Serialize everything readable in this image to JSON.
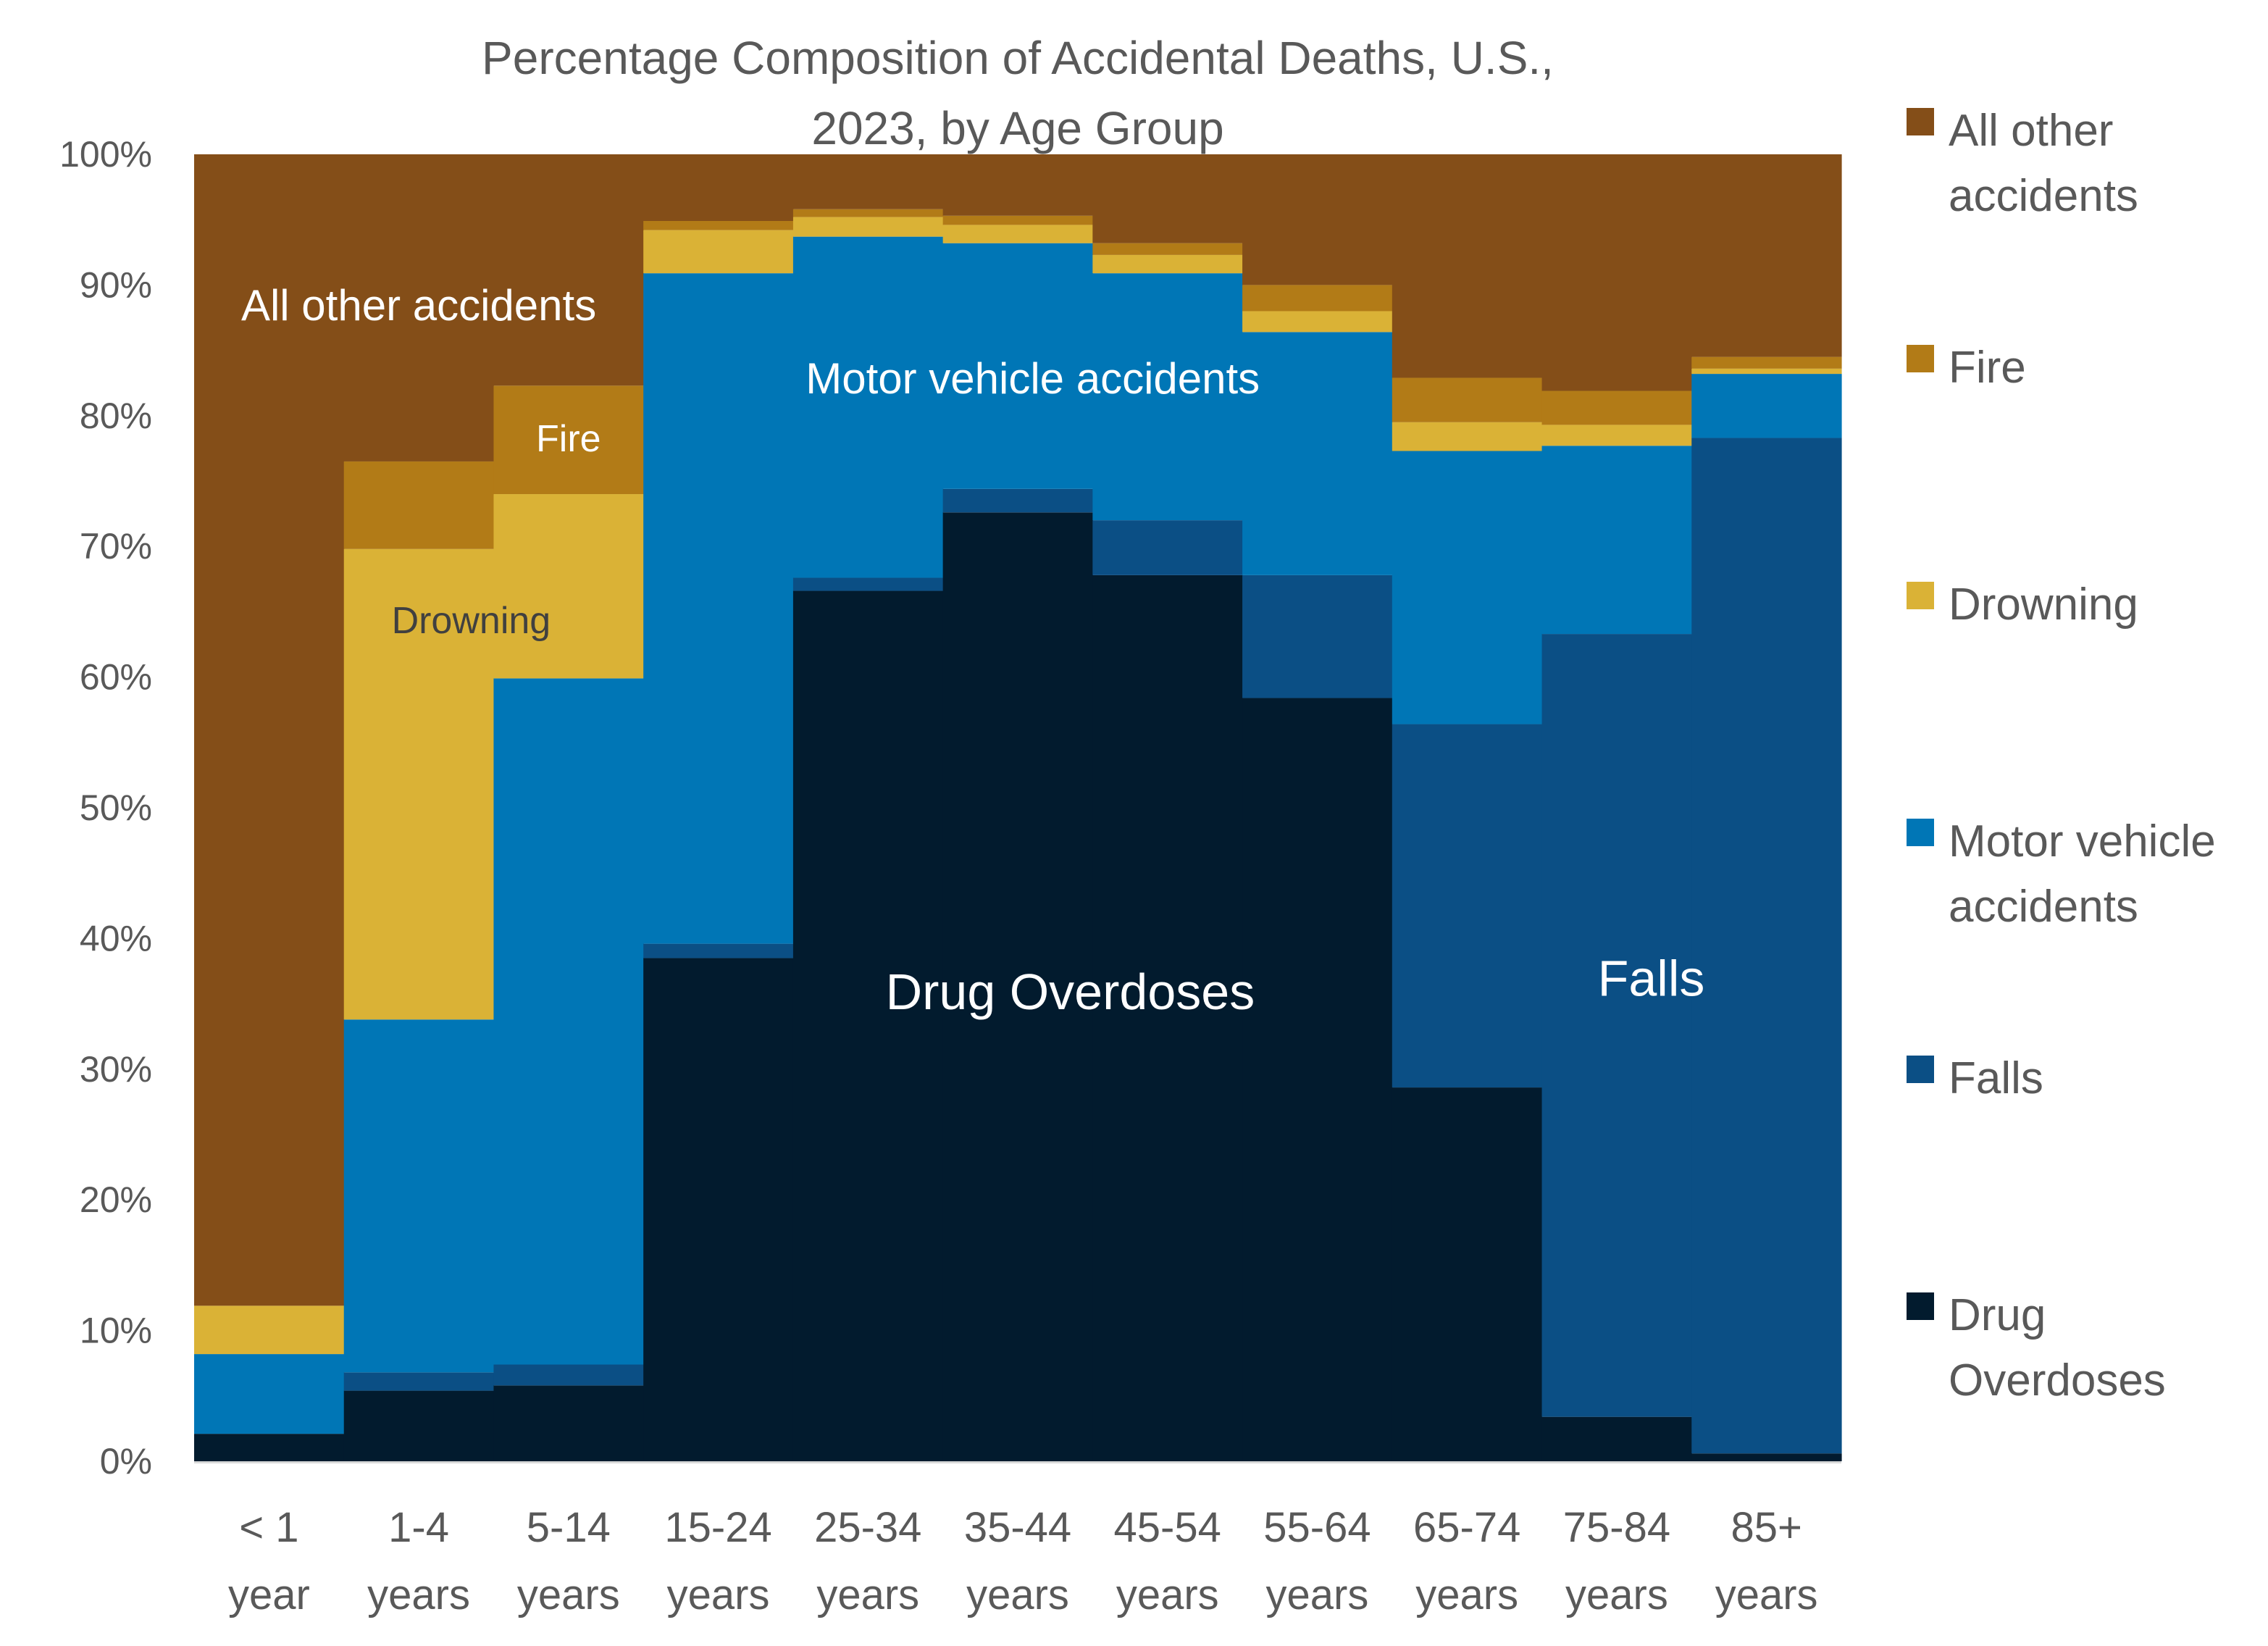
{
  "chart_data": {
    "type": "bar",
    "stacking": "percent",
    "title": "Percentage Composition of Accidental Deaths, U.S., 2023, by Age Group",
    "title_lines": [
      "Percentage Composition of Accidental Deaths, U.S.,",
      "2023, by Age Group"
    ],
    "xlabel": "",
    "ylabel": "",
    "ylim": [
      0,
      100
    ],
    "y_ticks": [
      "0%",
      "10%",
      "20%",
      "30%",
      "40%",
      "50%",
      "60%",
      "70%",
      "80%",
      "90%",
      "100%"
    ],
    "categories": [
      "< 1 year",
      "1-4 years",
      "5-14 years",
      "15-24 years",
      "25-34 years",
      "35-44 years",
      "45-54 years",
      "55-64 years",
      "65-74 years",
      "75-84 years",
      "85+ years"
    ],
    "category_lines": [
      [
        "< 1",
        "year"
      ],
      [
        "1-4",
        "years"
      ],
      [
        "5-14",
        "years"
      ],
      [
        "15-24",
        "years"
      ],
      [
        "25-34",
        "years"
      ],
      [
        "35-44",
        "years"
      ],
      [
        "45-54",
        "years"
      ],
      [
        "55-64",
        "years"
      ],
      [
        "65-74",
        "years"
      ],
      [
        "75-84",
        "years"
      ],
      [
        "85+",
        "years"
      ]
    ],
    "series": [
      {
        "name": "Drug Overdoses",
        "color": "#021b2e",
        "values": [
          2.1,
          5.4,
          5.8,
          38.5,
          66.6,
          72.6,
          67.8,
          58.4,
          28.6,
          3.4,
          0.6
        ]
      },
      {
        "name": "Falls",
        "color": "#0b4f85",
        "values": [
          0.0,
          1.4,
          1.6,
          1.1,
          1.0,
          1.8,
          4.2,
          9.4,
          27.8,
          59.9,
          77.7
        ]
      },
      {
        "name": "Motor vehicle accidents",
        "color": "#0076b6",
        "values": [
          6.1,
          27.0,
          52.5,
          51.3,
          26.1,
          18.8,
          18.9,
          18.6,
          20.9,
          14.4,
          4.9
        ]
      },
      {
        "name": "Drowning",
        "color": "#dab236",
        "values": [
          3.7,
          36.0,
          14.1,
          3.3,
          1.5,
          1.4,
          1.4,
          1.6,
          2.2,
          1.6,
          0.4
        ]
      },
      {
        "name": "Fire",
        "color": "#b27b17",
        "values": [
          0.0,
          6.7,
          8.3,
          0.7,
          0.6,
          0.7,
          0.9,
          2.0,
          3.4,
          2.6,
          0.9
        ]
      },
      {
        "name": "All other accidents",
        "color": "#844e18",
        "values": [
          88.1,
          23.5,
          17.7,
          5.1,
          4.2,
          4.7,
          6.8,
          10.0,
          17.1,
          18.1,
          15.5
        ]
      }
    ],
    "legend": {
      "placement": "right",
      "entries": [
        {
          "series": "All other accidents",
          "lines": [
            "All other",
            "accidents"
          ]
        },
        {
          "series": "Fire",
          "lines": [
            "Fire"
          ]
        },
        {
          "series": "Drowning",
          "lines": [
            "Drowning"
          ]
        },
        {
          "series": "Motor vehicle accidents",
          "lines": [
            "Motor vehicle",
            "accidents"
          ]
        },
        {
          "series": "Falls",
          "lines": [
            "Falls"
          ]
        },
        {
          "series": "Drug Overdoses",
          "lines": [
            "Drug",
            "Overdoses"
          ]
        }
      ]
    },
    "annotations": [
      {
        "text": "All other accidents",
        "color": "#ffffff",
        "category": 1,
        "value": 88.5,
        "size": "medium"
      },
      {
        "text": "Fire",
        "color": "#ffffff",
        "category": 2,
        "value": 78.3,
        "size": "small"
      },
      {
        "text": "Drowning",
        "color": "#404040",
        "category": 1.35,
        "value": 64.4,
        "size": "small"
      },
      {
        "text": "Motor vehicle accidents",
        "color": "#ffffff",
        "category": 5.1,
        "value": 82.9,
        "size": "medium"
      },
      {
        "text": "Drug Overdoses",
        "color": "#ffffff",
        "category": 5.35,
        "value": 36.0,
        "size": "large"
      },
      {
        "text": "Falls",
        "color": "#ffffff",
        "category": 9.23,
        "value": 37.0,
        "size": "large"
      }
    ],
    "grid": false,
    "axis_color": "#d9d9d9",
    "text_color": "#595959"
  }
}
